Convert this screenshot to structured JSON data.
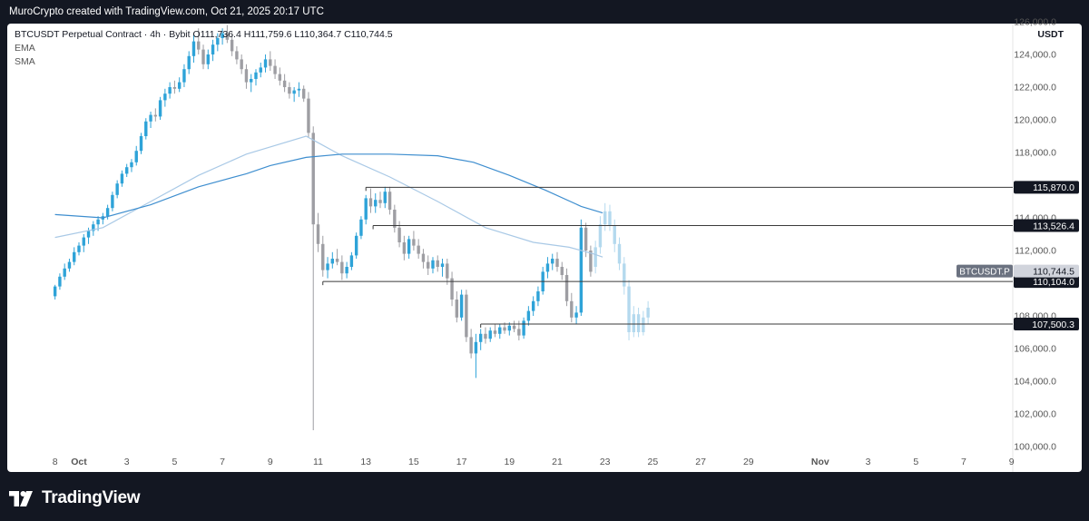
{
  "header": {
    "attribution": "MuroCrypto created with TradingView.com, Oct 21, 2025 20:17 UTC"
  },
  "legend": {
    "symbol": "BTCUSDT Perpetual Contract · 4h · Bybit",
    "open": "O111,736.4",
    "high": "H111,759.6",
    "low": "L110,364.7",
    "close": "C110,744.5",
    "ema": "EMA",
    "sma": "SMA"
  },
  "axis": {
    "currency": "USDT"
  },
  "branding": {
    "name": "TradingView"
  },
  "colors": {
    "up": "#2ea3d8",
    "down": "#9e9ea3",
    "projection": "#b4d9ee",
    "ema": "#3e8ecf",
    "sma": "#a9c9e6",
    "level_line": "#3a3a3a",
    "label_bg": "#131722"
  },
  "chart_data": {
    "type": "candlestick",
    "ylim": [
      100000,
      126500
    ],
    "y_ticks": [
      {
        "value": 100000,
        "label": "100,000.0"
      },
      {
        "value": 102000,
        "label": "102,000.0"
      },
      {
        "value": 104000,
        "label": "104,000.0"
      },
      {
        "value": 106000,
        "label": "106,000.0"
      },
      {
        "value": 108000,
        "label": "108,000.0"
      },
      {
        "value": 112000,
        "label": "112,000.0"
      },
      {
        "value": 114000,
        "label": "114,000.0"
      },
      {
        "value": 118000,
        "label": "118,000.0"
      },
      {
        "value": 120000,
        "label": "120,000.0"
      },
      {
        "value": 122000,
        "label": "122,000.0"
      },
      {
        "value": 124000,
        "label": "124,000.0"
      },
      {
        "value": 126000,
        "label": "126,000.0"
      }
    ],
    "x_ticks": [
      {
        "day": -1,
        "label": "8"
      },
      {
        "day": 0,
        "label": "Oct"
      },
      {
        "day": 2,
        "label": "3"
      },
      {
        "day": 4,
        "label": "5"
      },
      {
        "day": 6,
        "label": "7"
      },
      {
        "day": 8,
        "label": "9"
      },
      {
        "day": 10,
        "label": "11"
      },
      {
        "day": 12,
        "label": "13"
      },
      {
        "day": 14,
        "label": "15"
      },
      {
        "day": 16,
        "label": "17"
      },
      {
        "day": 18,
        "label": "19"
      },
      {
        "day": 20,
        "label": "21"
      },
      {
        "day": 22,
        "label": "23"
      },
      {
        "day": 24,
        "label": "25"
      },
      {
        "day": 26,
        "label": "27"
      },
      {
        "day": 28,
        "label": "29"
      },
      {
        "day": 31,
        "label": "Nov"
      },
      {
        "day": 33,
        "label": "3"
      },
      {
        "day": 35,
        "label": "5"
      },
      {
        "day": 37,
        "label": "7"
      },
      {
        "day": 39,
        "label": "9"
      }
    ],
    "levels": [
      {
        "value": 115870,
        "label": "115,870.0",
        "from_day": 12.0
      },
      {
        "value": 113526.4,
        "label": "113,526.4",
        "from_day": 12.3
      },
      {
        "value": 110104,
        "label": "110,104.0",
        "from_day": 10.2
      },
      {
        "value": 107500.3,
        "label": "107,500.3",
        "from_day": 16.8
      }
    ],
    "price_label": {
      "name": "BTCUSDT.P",
      "value": 110744.5,
      "label": "110,744.5"
    },
    "ema_series": [
      [
        -1,
        114200
      ],
      [
        1,
        114000
      ],
      [
        3,
        114800
      ],
      [
        5,
        115900
      ],
      [
        7,
        116700
      ],
      [
        8,
        117200
      ],
      [
        9.5,
        117700
      ],
      [
        11,
        117900
      ],
      [
        13,
        117900
      ],
      [
        15,
        117800
      ],
      [
        16.5,
        117400
      ],
      [
        18,
        116600
      ],
      [
        19.5,
        115700
      ],
      [
        21,
        114700
      ],
      [
        21.9,
        114300
      ]
    ],
    "sma_series": [
      [
        -1,
        112800
      ],
      [
        1,
        113400
      ],
      [
        3,
        115000
      ],
      [
        5,
        116600
      ],
      [
        7,
        117900
      ],
      [
        9.5,
        119000
      ],
      [
        10,
        118600
      ],
      [
        11,
        117800
      ],
      [
        13,
        116500
      ],
      [
        15,
        115000
      ],
      [
        17,
        113400
      ],
      [
        19,
        112500
      ],
      [
        20.5,
        112200
      ],
      [
        21.5,
        111800
      ],
      [
        21.9,
        111600
      ]
    ],
    "candles": [
      [
        -1,
        109200,
        109900,
        109000,
        109800
      ],
      [
        -0.8,
        109800,
        110600,
        109600,
        110400
      ],
      [
        -0.6,
        110400,
        111200,
        110200,
        110900
      ],
      [
        -0.4,
        110900,
        111500,
        110700,
        111300
      ],
      [
        -0.2,
        111300,
        112200,
        111100,
        111900
      ],
      [
        0,
        111900,
        112500,
        111700,
        112300
      ],
      [
        0.2,
        112300,
        113000,
        111900,
        112800
      ],
      [
        0.4,
        112800,
        113400,
        112400,
        113200
      ],
      [
        0.6,
        113200,
        113800,
        112900,
        113600
      ],
      [
        0.8,
        113600,
        114100,
        113200,
        113900
      ],
      [
        1,
        113900,
        114300,
        113600,
        114100
      ],
      [
        1.2,
        114100,
        114800,
        113900,
        114600
      ],
      [
        1.4,
        114600,
        115600,
        114400,
        115400
      ],
      [
        1.6,
        115400,
        116300,
        115200,
        116100
      ],
      [
        1.8,
        116100,
        116900,
        115900,
        116700
      ],
      [
        2,
        116700,
        117300,
        116500,
        117100
      ],
      [
        2.2,
        117100,
        117600,
        116800,
        117400
      ],
      [
        2.4,
        117400,
        118400,
        117200,
        118100
      ],
      [
        2.6,
        118100,
        119200,
        117900,
        119000
      ],
      [
        2.8,
        119000,
        120100,
        118800,
        119900
      ],
      [
        3,
        119900,
        120500,
        119500,
        120300
      ],
      [
        3.2,
        120300,
        120700,
        119900,
        120200
      ],
      [
        3.4,
        120200,
        121400,
        120000,
        121200
      ],
      [
        3.6,
        121200,
        121900,
        120800,
        121600
      ],
      [
        3.8,
        121600,
        122300,
        121300,
        122000
      ],
      [
        4,
        122000,
        122400,
        121600,
        121900
      ],
      [
        4.2,
        121900,
        122600,
        121700,
        122300
      ],
      [
        4.4,
        122300,
        123400,
        122000,
        123100
      ],
      [
        4.6,
        123100,
        124200,
        122800,
        123900
      ],
      [
        4.8,
        123900,
        125200,
        123500,
        124800
      ],
      [
        5,
        124800,
        125600,
        124000,
        124300
      ],
      [
        5.2,
        124300,
        124600,
        123100,
        123400
      ],
      [
        5.4,
        123400,
        124300,
        123100,
        124000
      ],
      [
        5.6,
        124000,
        124900,
        123600,
        124600
      ],
      [
        5.8,
        124600,
        125300,
        124200,
        125000
      ],
      [
        6,
        125000,
        125600,
        124600,
        125300
      ],
      [
        6.2,
        125300,
        125800,
        124700,
        124900
      ],
      [
        6.4,
        124900,
        125200,
        123900,
        124200
      ],
      [
        6.6,
        124200,
        124500,
        123400,
        123700
      ],
      [
        6.8,
        123700,
        124000,
        122800,
        123100
      ],
      [
        7,
        123100,
        123400,
        121900,
        122300
      ],
      [
        7.2,
        122300,
        122800,
        121700,
        122500
      ],
      [
        7.4,
        122500,
        123100,
        122100,
        122900
      ],
      [
        7.6,
        122900,
        123500,
        122600,
        123200
      ],
      [
        7.8,
        123200,
        124000,
        122900,
        123700
      ],
      [
        8,
        123700,
        124200,
        123000,
        123300
      ],
      [
        8.2,
        123300,
        123700,
        122500,
        122800
      ],
      [
        8.4,
        122800,
        123200,
        122100,
        122400
      ],
      [
        8.6,
        122400,
        122800,
        121700,
        122000
      ],
      [
        8.8,
        122000,
        122300,
        121300,
        121600
      ],
      [
        9,
        121600,
        122000,
        121100,
        121800
      ],
      [
        9.2,
        121800,
        122300,
        121400,
        121900
      ],
      [
        9.4,
        121900,
        122100,
        121100,
        121300
      ],
      [
        9.6,
        121300,
        121700,
        118900,
        119200
      ],
      [
        9.8,
        119200,
        119600,
        101000,
        113600
      ],
      [
        10,
        113600,
        114300,
        111900,
        112400
      ],
      [
        10.2,
        112400,
        112900,
        110400,
        110800
      ],
      [
        10.4,
        110800,
        111600,
        110300,
        111200
      ],
      [
        10.6,
        111200,
        111900,
        110900,
        111500
      ],
      [
        10.8,
        111500,
        112100,
        111100,
        111300
      ],
      [
        11,
        111300,
        111700,
        110200,
        110600
      ],
      [
        11.2,
        110600,
        111300,
        110300,
        111000
      ],
      [
        11.4,
        111000,
        111900,
        110800,
        111700
      ],
      [
        11.6,
        111700,
        113100,
        111500,
        112900
      ],
      [
        11.8,
        112900,
        114100,
        112700,
        113900
      ],
      [
        12,
        113900,
        115400,
        113600,
        115200
      ],
      [
        12.2,
        115200,
        115800,
        114300,
        114700
      ],
      [
        12.4,
        114700,
        115500,
        114300,
        115100
      ],
      [
        12.6,
        115100,
        115600,
        114600,
        114900
      ],
      [
        12.8,
        114900,
        115900,
        114600,
        115600
      ],
      [
        13,
        115600,
        115900,
        114200,
        114500
      ],
      [
        13.2,
        114500,
        114800,
        113100,
        113400
      ],
      [
        13.4,
        113400,
        113800,
        112200,
        112500
      ],
      [
        13.6,
        112500,
        112900,
        111400,
        111800
      ],
      [
        13.8,
        111800,
        112900,
        111500,
        112700
      ],
      [
        14,
        112700,
        113200,
        112000,
        112300
      ],
      [
        14.2,
        112300,
        112700,
        111500,
        111800
      ],
      [
        14.4,
        111800,
        112100,
        110900,
        111300
      ],
      [
        14.6,
        111300,
        111700,
        110500,
        110900
      ],
      [
        14.8,
        110900,
        111600,
        110600,
        111400
      ],
      [
        15,
        111400,
        111700,
        110700,
        111000
      ],
      [
        15.2,
        111000,
        111500,
        110400,
        111200
      ],
      [
        15.4,
        111200,
        111500,
        109900,
        110300
      ],
      [
        15.6,
        110300,
        110700,
        108600,
        109000
      ],
      [
        15.8,
        109000,
        109500,
        107600,
        107900
      ],
      [
        16,
        107900,
        109600,
        107700,
        109300
      ],
      [
        16.2,
        109300,
        109600,
        106400,
        106700
      ],
      [
        16.4,
        106700,
        107200,
        105400,
        105700
      ],
      [
        16.6,
        105700,
        106900,
        104200,
        106400
      ],
      [
        16.8,
        106400,
        107200,
        105900,
        106900
      ],
      [
        17,
        106900,
        107300,
        106300,
        106600
      ],
      [
        17.2,
        106600,
        107300,
        106400,
        107100
      ],
      [
        17.4,
        107100,
        107500,
        106700,
        106900
      ],
      [
        17.6,
        106900,
        107500,
        106600,
        107300
      ],
      [
        17.8,
        107300,
        107600,
        106900,
        107100
      ],
      [
        18,
        107100,
        107600,
        106800,
        107400
      ],
      [
        18.2,
        107400,
        107700,
        107000,
        107200
      ],
      [
        18.4,
        107200,
        107700,
        106500,
        106800
      ],
      [
        18.6,
        106800,
        107900,
        106600,
        107700
      ],
      [
        18.8,
        107700,
        108600,
        107400,
        108300
      ],
      [
        19,
        108300,
        109200,
        108000,
        108900
      ],
      [
        19.2,
        108900,
        109800,
        108600,
        109500
      ],
      [
        19.4,
        109500,
        111000,
        109300,
        110700
      ],
      [
        19.6,
        110700,
        111600,
        110300,
        111200
      ],
      [
        19.8,
        111200,
        111800,
        110800,
        111500
      ],
      [
        20,
        111500,
        111900,
        110700,
        111000
      ],
      [
        20.2,
        111000,
        111300,
        110200,
        110500
      ],
      [
        20.4,
        110500,
        110900,
        108600,
        108900
      ],
      [
        20.6,
        108900,
        109400,
        107600,
        107900
      ],
      [
        20.8,
        107900,
        108600,
        107500,
        108200
      ],
      [
        21,
        108200,
        113900,
        108000,
        113400
      ],
      [
        21.2,
        113400,
        113700,
        111600,
        112000
      ],
      [
        21.4,
        112000,
        112300,
        110400,
        110700
      ]
    ],
    "projection": [
      [
        21.6,
        111000,
        112600,
        110600,
        112200
      ],
      [
        21.8,
        112200,
        114100,
        111800,
        113600
      ],
      [
        22,
        113600,
        114900,
        113200,
        114400
      ],
      [
        22.2,
        114400,
        114800,
        113200,
        113500
      ],
      [
        22.4,
        113500,
        113900,
        111900,
        112400
      ],
      [
        22.6,
        112400,
        112800,
        110800,
        111200
      ],
      [
        22.8,
        111200,
        111600,
        109300,
        109800
      ],
      [
        23,
        109800,
        110200,
        106500,
        107000
      ],
      [
        23.2,
        107000,
        108600,
        106700,
        108100
      ],
      [
        23.4,
        108100,
        108500,
        106700,
        107000
      ],
      [
        23.6,
        107000,
        108300,
        106800,
        107900
      ],
      [
        23.8,
        107900,
        108900,
        107500,
        108500
      ]
    ]
  }
}
